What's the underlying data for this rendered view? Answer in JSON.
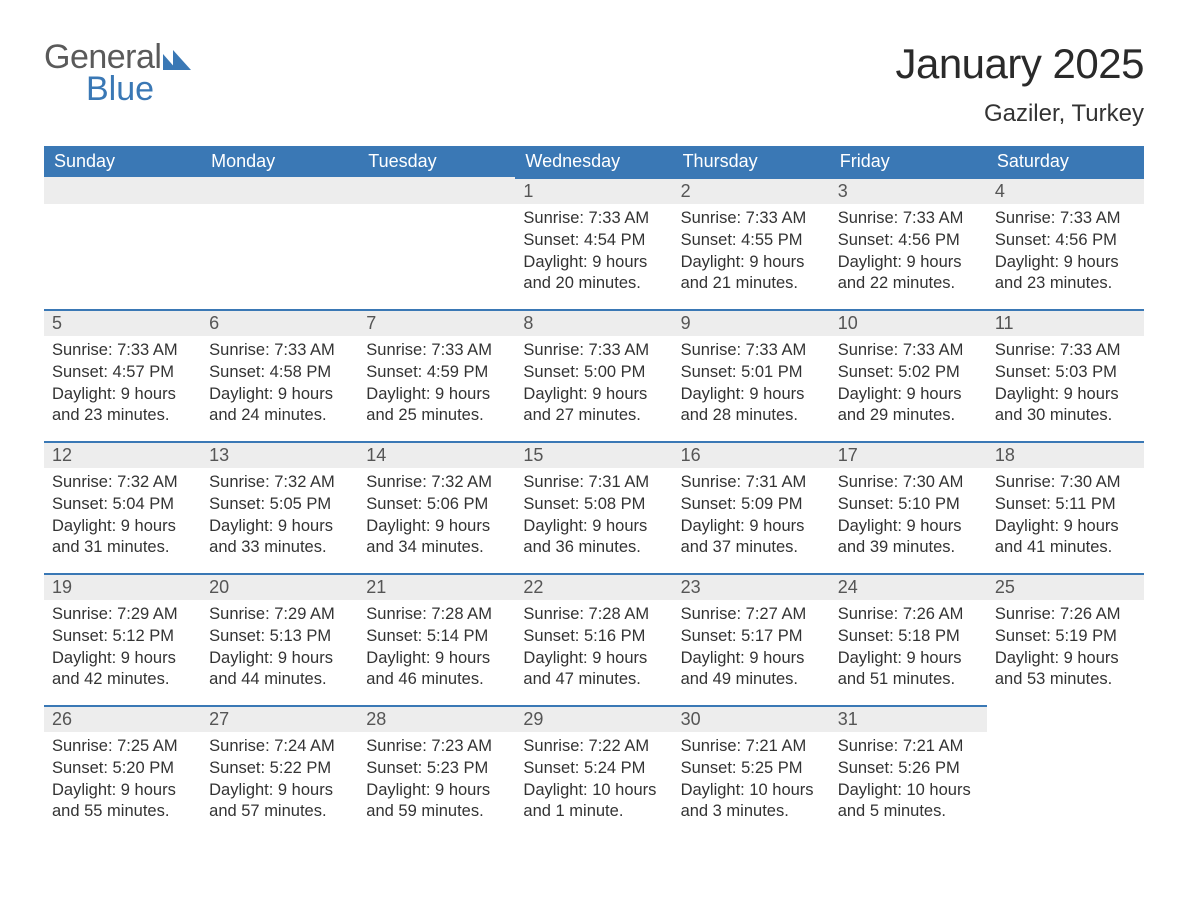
{
  "logo": {
    "word1": "General",
    "word2": "Blue"
  },
  "title": "January 2025",
  "location": "Gaziler, Turkey",
  "header_bg": "#3a78b5",
  "row_accent": "#3a78b5",
  "daynum_bg": "#ededed",
  "weekdays": [
    "Sunday",
    "Monday",
    "Tuesday",
    "Wednesday",
    "Thursday",
    "Friday",
    "Saturday"
  ],
  "weeks": [
    [
      null,
      null,
      null,
      {
        "n": "1",
        "sr": "7:33 AM",
        "ss": "4:54 PM",
        "dl": "9 hours and 20 minutes."
      },
      {
        "n": "2",
        "sr": "7:33 AM",
        "ss": "4:55 PM",
        "dl": "9 hours and 21 minutes."
      },
      {
        "n": "3",
        "sr": "7:33 AM",
        "ss": "4:56 PM",
        "dl": "9 hours and 22 minutes."
      },
      {
        "n": "4",
        "sr": "7:33 AM",
        "ss": "4:56 PM",
        "dl": "9 hours and 23 minutes."
      }
    ],
    [
      {
        "n": "5",
        "sr": "7:33 AM",
        "ss": "4:57 PM",
        "dl": "9 hours and 23 minutes."
      },
      {
        "n": "6",
        "sr": "7:33 AM",
        "ss": "4:58 PM",
        "dl": "9 hours and 24 minutes."
      },
      {
        "n": "7",
        "sr": "7:33 AM",
        "ss": "4:59 PM",
        "dl": "9 hours and 25 minutes."
      },
      {
        "n": "8",
        "sr": "7:33 AM",
        "ss": "5:00 PM",
        "dl": "9 hours and 27 minutes."
      },
      {
        "n": "9",
        "sr": "7:33 AM",
        "ss": "5:01 PM",
        "dl": "9 hours and 28 minutes."
      },
      {
        "n": "10",
        "sr": "7:33 AM",
        "ss": "5:02 PM",
        "dl": "9 hours and 29 minutes."
      },
      {
        "n": "11",
        "sr": "7:33 AM",
        "ss": "5:03 PM",
        "dl": "9 hours and 30 minutes."
      }
    ],
    [
      {
        "n": "12",
        "sr": "7:32 AM",
        "ss": "5:04 PM",
        "dl": "9 hours and 31 minutes."
      },
      {
        "n": "13",
        "sr": "7:32 AM",
        "ss": "5:05 PM",
        "dl": "9 hours and 33 minutes."
      },
      {
        "n": "14",
        "sr": "7:32 AM",
        "ss": "5:06 PM",
        "dl": "9 hours and 34 minutes."
      },
      {
        "n": "15",
        "sr": "7:31 AM",
        "ss": "5:08 PM",
        "dl": "9 hours and 36 minutes."
      },
      {
        "n": "16",
        "sr": "7:31 AM",
        "ss": "5:09 PM",
        "dl": "9 hours and 37 minutes."
      },
      {
        "n": "17",
        "sr": "7:30 AM",
        "ss": "5:10 PM",
        "dl": "9 hours and 39 minutes."
      },
      {
        "n": "18",
        "sr": "7:30 AM",
        "ss": "5:11 PM",
        "dl": "9 hours and 41 minutes."
      }
    ],
    [
      {
        "n": "19",
        "sr": "7:29 AM",
        "ss": "5:12 PM",
        "dl": "9 hours and 42 minutes."
      },
      {
        "n": "20",
        "sr": "7:29 AM",
        "ss": "5:13 PM",
        "dl": "9 hours and 44 minutes."
      },
      {
        "n": "21",
        "sr": "7:28 AM",
        "ss": "5:14 PM",
        "dl": "9 hours and 46 minutes."
      },
      {
        "n": "22",
        "sr": "7:28 AM",
        "ss": "5:16 PM",
        "dl": "9 hours and 47 minutes."
      },
      {
        "n": "23",
        "sr": "7:27 AM",
        "ss": "5:17 PM",
        "dl": "9 hours and 49 minutes."
      },
      {
        "n": "24",
        "sr": "7:26 AM",
        "ss": "5:18 PM",
        "dl": "9 hours and 51 minutes."
      },
      {
        "n": "25",
        "sr": "7:26 AM",
        "ss": "5:19 PM",
        "dl": "9 hours and 53 minutes."
      }
    ],
    [
      {
        "n": "26",
        "sr": "7:25 AM",
        "ss": "5:20 PM",
        "dl": "9 hours and 55 minutes."
      },
      {
        "n": "27",
        "sr": "7:24 AM",
        "ss": "5:22 PM",
        "dl": "9 hours and 57 minutes."
      },
      {
        "n": "28",
        "sr": "7:23 AM",
        "ss": "5:23 PM",
        "dl": "9 hours and 59 minutes."
      },
      {
        "n": "29",
        "sr": "7:22 AM",
        "ss": "5:24 PM",
        "dl": "10 hours and 1 minute."
      },
      {
        "n": "30",
        "sr": "7:21 AM",
        "ss": "5:25 PM",
        "dl": "10 hours and 3 minutes."
      },
      {
        "n": "31",
        "sr": "7:21 AM",
        "ss": "5:26 PM",
        "dl": "10 hours and 5 minutes."
      },
      null
    ]
  ],
  "labels": {
    "sunrise": "Sunrise: ",
    "sunset": "Sunset: ",
    "daylight": "Daylight: "
  }
}
